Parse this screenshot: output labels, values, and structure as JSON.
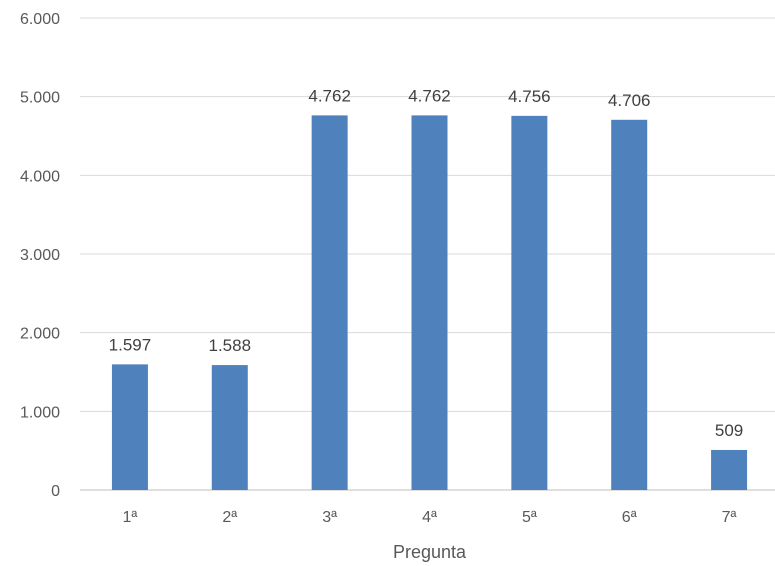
{
  "chart_data": {
    "type": "bar",
    "categories": [
      "1ª",
      "2ª",
      "3ª",
      "4ª",
      "5ª",
      "6ª",
      "7ª"
    ],
    "values": [
      1597,
      1588,
      4762,
      4762,
      4756,
      4706,
      509
    ],
    "value_labels": [
      "1.597",
      "1.588",
      "4.762",
      "4.762",
      "4.756",
      "4.706",
      "509"
    ],
    "xlabel": "Pregunta",
    "ylabel": "",
    "ylim": [
      0,
      6000
    ],
    "yticks": [
      0,
      1000,
      2000,
      3000,
      4000,
      5000,
      6000
    ],
    "ytick_labels": [
      "0",
      "1.000",
      "2.000",
      "3.000",
      "4.000",
      "5.000",
      "6.000"
    ],
    "grid": true,
    "legend": "none",
    "bar_color": "#4f81bd"
  }
}
